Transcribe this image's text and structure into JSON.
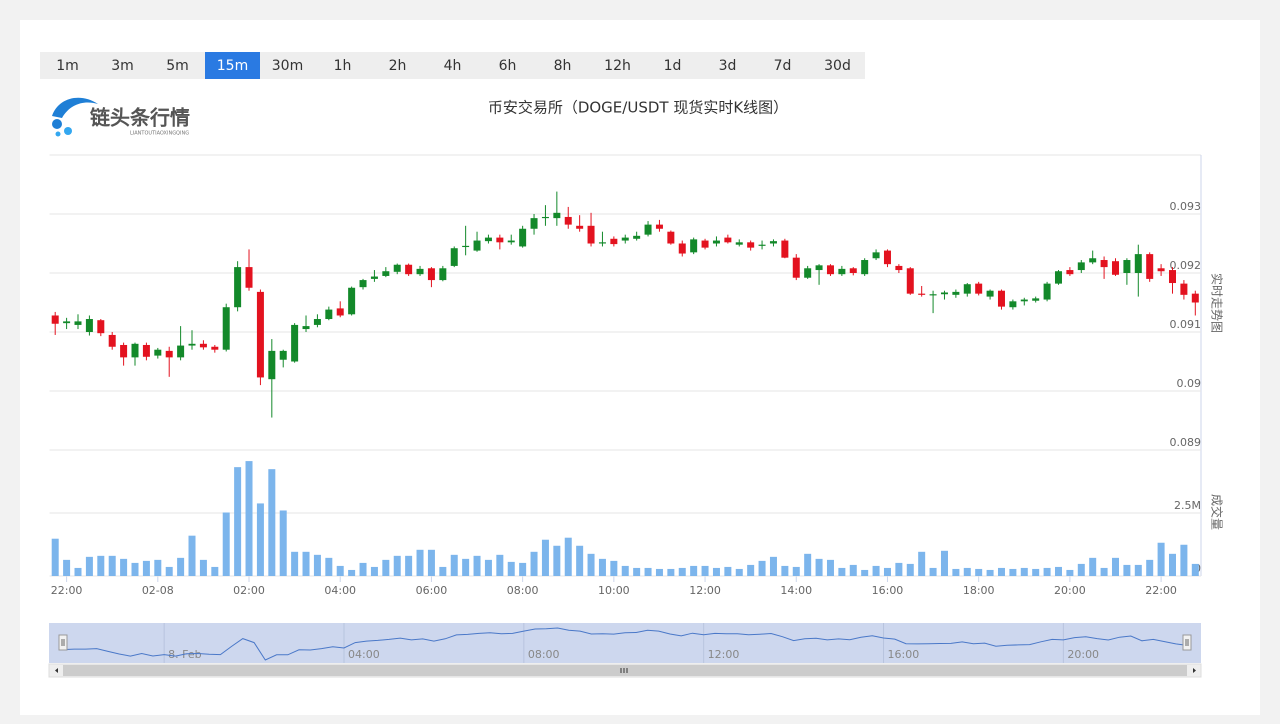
{
  "logo": {
    "name": "链头条行情",
    "pinyin": "LIANTOUTIAOXINGQING"
  },
  "ranges": [
    "1m",
    "3m",
    "5m",
    "15m",
    "30m",
    "1h",
    "2h",
    "4h",
    "6h",
    "8h",
    "12h",
    "1d",
    "3d",
    "7d",
    "30d"
  ],
  "active_range": "15m",
  "navigator": {
    "labels": [
      "8. Feb",
      "04:00",
      "08:00",
      "12:00",
      "16:00",
      "20:00"
    ]
  },
  "chart_data": [
    {
      "type": "candlestick",
      "title": "币安交易所（DOGE/USDT 现货实时K线图）",
      "y_label": "实时走势图",
      "up_color": "#13892a",
      "down_color": "#e3121f",
      "ylim": [
        0.089,
        0.094
      ],
      "yticks": [
        0.089,
        0.09,
        0.091,
        0.092,
        0.093
      ],
      "grid": true,
      "categories": [
        null,
        "22:00",
        null,
        null,
        null,
        null,
        null,
        null,
        null,
        "02-08",
        null,
        null,
        null,
        null,
        null,
        null,
        null,
        "02:00",
        null,
        null,
        null,
        null,
        null,
        null,
        null,
        "04:00",
        null,
        null,
        null,
        null,
        null,
        null,
        null,
        "06:00",
        null,
        null,
        null,
        null,
        null,
        null,
        null,
        "08:00",
        null,
        null,
        null,
        null,
        null,
        null,
        null,
        "10:00",
        null,
        null,
        null,
        null,
        null,
        null,
        null,
        "12:00",
        null,
        null,
        null,
        null,
        null,
        null,
        null,
        "14:00",
        null,
        null,
        null,
        null,
        null,
        null,
        null,
        "16:00",
        null,
        null,
        null,
        null,
        null,
        null,
        null,
        "18:00",
        null,
        null,
        null,
        null,
        null,
        null,
        null,
        "20:00",
        null,
        null,
        null,
        null,
        null,
        null,
        null,
        "22:00",
        null,
        null,
        null
      ],
      "open": [
        0.09128,
        0.09115,
        0.09112,
        0.091,
        0.0912,
        0.09095,
        0.09078,
        0.09057,
        0.09078,
        0.0906,
        0.09068,
        0.09057,
        0.09077,
        0.0908,
        0.09075,
        0.0907,
        0.09142,
        0.0921,
        0.09168,
        0.0902,
        0.09053,
        0.0905,
        0.09105,
        0.09112,
        0.09122,
        0.0914,
        0.0913,
        0.09176,
        0.0919,
        0.09195,
        0.09202,
        0.09214,
        0.09198,
        0.09208,
        0.09188,
        0.09212,
        0.09244,
        0.09238,
        0.09254,
        0.0926,
        0.09252,
        0.09245,
        0.09275,
        0.09293,
        0.09293,
        0.09295,
        0.0928,
        0.0928,
        0.0925,
        0.09258,
        0.09255,
        0.09258,
        0.09265,
        0.09282,
        0.0927,
        0.0925,
        0.09235,
        0.09255,
        0.0925,
        0.0926,
        0.09248,
        0.09252,
        0.09246,
        0.0925,
        0.09255,
        0.09226,
        0.09192,
        0.09205,
        0.09213,
        0.09198,
        0.09208,
        0.09198,
        0.09225,
        0.09238,
        0.09212,
        0.09208,
        0.09165,
        0.09162,
        0.09164,
        0.09163,
        0.09165,
        0.09182,
        0.0916,
        0.0917,
        0.09142,
        0.09152,
        0.09153,
        0.09155,
        0.09182,
        0.09205,
        0.09205,
        0.09218,
        0.09222,
        0.0922,
        0.092,
        0.092,
        0.09232,
        0.09208,
        0.09205,
        0.09182,
        0.09165
      ],
      "high": [
        0.09134,
        0.09124,
        0.0913,
        0.09128,
        0.09122,
        0.091,
        0.09082,
        0.09082,
        0.09082,
        0.09073,
        0.09075,
        0.0911,
        0.09103,
        0.09086,
        0.09078,
        0.09148,
        0.0922,
        0.0924,
        0.09172,
        0.09088,
        0.0907,
        0.09115,
        0.09128,
        0.0913,
        0.09143,
        0.09152,
        0.09177,
        0.0919,
        0.09205,
        0.0921,
        0.09216,
        0.09216,
        0.09212,
        0.0921,
        0.09212,
        0.09245,
        0.0928,
        0.0927,
        0.09265,
        0.09265,
        0.09265,
        0.0928,
        0.093,
        0.09315,
        0.09338,
        0.09312,
        0.09298,
        0.09302,
        0.0927,
        0.09262,
        0.09265,
        0.0927,
        0.09288,
        0.0929,
        0.09272,
        0.09255,
        0.0926,
        0.09258,
        0.09262,
        0.09265,
        0.09257,
        0.09255,
        0.09255,
        0.09257,
        0.09258,
        0.09232,
        0.09212,
        0.09215,
        0.09215,
        0.09212,
        0.0921,
        0.09225,
        0.0924,
        0.0924,
        0.09215,
        0.0921,
        0.09178,
        0.0917,
        0.0917,
        0.09172,
        0.09183,
        0.09185,
        0.09172,
        0.09172,
        0.09155,
        0.09158,
        0.0916,
        0.09185,
        0.09205,
        0.0921,
        0.09222,
        0.09238,
        0.09228,
        0.09225,
        0.09225,
        0.09248,
        0.09235,
        0.09215,
        0.0921,
        0.09188,
        0.0917
      ],
      "low": [
        0.09095,
        0.09105,
        0.09105,
        0.09094,
        0.09093,
        0.0907,
        0.09043,
        0.09043,
        0.09052,
        0.09055,
        0.09024,
        0.09052,
        0.0907,
        0.0907,
        0.09065,
        0.09067,
        0.09135,
        0.0917,
        0.0901,
        0.08955,
        0.0904,
        0.09048,
        0.091,
        0.09108,
        0.0912,
        0.09125,
        0.09128,
        0.09172,
        0.09185,
        0.09193,
        0.09198,
        0.09195,
        0.09195,
        0.09176,
        0.09186,
        0.0921,
        0.0923,
        0.09236,
        0.0925,
        0.0924,
        0.09248,
        0.09243,
        0.09265,
        0.0928,
        0.0928,
        0.09275,
        0.0927,
        0.09245,
        0.09245,
        0.09245,
        0.0925,
        0.09255,
        0.09262,
        0.0927,
        0.09248,
        0.09228,
        0.09232,
        0.0924,
        0.09245,
        0.0925,
        0.09245,
        0.09238,
        0.0924,
        0.09245,
        0.09225,
        0.09188,
        0.0919,
        0.0918,
        0.09195,
        0.09195,
        0.09196,
        0.09195,
        0.09222,
        0.0921,
        0.092,
        0.09163,
        0.0916,
        0.09132,
        0.09155,
        0.09158,
        0.0916,
        0.09162,
        0.09155,
        0.09138,
        0.09138,
        0.09145,
        0.0915,
        0.09152,
        0.0918,
        0.09195,
        0.092,
        0.09215,
        0.0919,
        0.09195,
        0.0918,
        0.0916,
        0.09185,
        0.09195,
        0.09165,
        0.09155,
        0.09128
      ],
      "close": [
        0.09114,
        0.09118,
        0.09118,
        0.09122,
        0.09098,
        0.09075,
        0.09057,
        0.0908,
        0.09058,
        0.0907,
        0.09057,
        0.09077,
        0.0908,
        0.09074,
        0.0907,
        0.09142,
        0.0921,
        0.09175,
        0.09023,
        0.09068,
        0.09068,
        0.09112,
        0.0911,
        0.09122,
        0.09138,
        0.09128,
        0.09175,
        0.09188,
        0.09194,
        0.09203,
        0.09214,
        0.09198,
        0.09207,
        0.09188,
        0.09208,
        0.09242,
        0.09246,
        0.09255,
        0.0926,
        0.09252,
        0.09255,
        0.09275,
        0.09293,
        0.09295,
        0.09302,
        0.09282,
        0.09275,
        0.0925,
        0.09252,
        0.09249,
        0.0926,
        0.09263,
        0.09282,
        0.09275,
        0.0925,
        0.09233,
        0.09257,
        0.09243,
        0.09255,
        0.09252,
        0.09252,
        0.09243,
        0.09248,
        0.09254,
        0.09226,
        0.09192,
        0.09208,
        0.09213,
        0.09198,
        0.09207,
        0.092,
        0.09222,
        0.09235,
        0.09215,
        0.09205,
        0.09165,
        0.09163,
        0.09164,
        0.09167,
        0.09168,
        0.09181,
        0.09165,
        0.0917,
        0.09143,
        0.09152,
        0.09155,
        0.09157,
        0.09182,
        0.09203,
        0.09198,
        0.09218,
        0.09225,
        0.0921,
        0.09197,
        0.09222,
        0.09232,
        0.0919,
        0.09203,
        0.09183,
        0.09163,
        0.0915
      ]
    },
    {
      "type": "bar",
      "y_label": "成交量",
      "color": "#7cb5ec",
      "ylim": [
        0,
        5000000
      ],
      "yticks": [
        0,
        {
          "value": 2500000,
          "label": "2.5M"
        }
      ],
      "grid": true,
      "values": [
        1480000,
        640000,
        320000,
        760000,
        800000,
        800000,
        680000,
        520000,
        600000,
        640000,
        360000,
        720000,
        1600000,
        640000,
        360000,
        2520000,
        4320000,
        4560000,
        2880000,
        4240000,
        2600000,
        960000,
        960000,
        840000,
        720000,
        400000,
        240000,
        520000,
        360000,
        640000,
        800000,
        800000,
        1040000,
        1040000,
        360000,
        840000,
        680000,
        800000,
        640000,
        840000,
        560000,
        520000,
        960000,
        1440000,
        1200000,
        1520000,
        1200000,
        880000,
        680000,
        600000,
        400000,
        320000,
        320000,
        280000,
        280000,
        320000,
        400000,
        400000,
        320000,
        360000,
        280000,
        440000,
        600000,
        760000,
        400000,
        360000,
        880000,
        680000,
        640000,
        320000,
        440000,
        240000,
        400000,
        320000,
        520000,
        480000,
        960000,
        320000,
        1000000,
        280000,
        320000,
        280000,
        240000,
        320000,
        280000,
        320000,
        280000,
        320000,
        360000,
        240000,
        480000,
        720000,
        320000,
        720000,
        440000,
        440000,
        640000,
        1320000,
        880000,
        1240000,
        480000
      ]
    }
  ]
}
